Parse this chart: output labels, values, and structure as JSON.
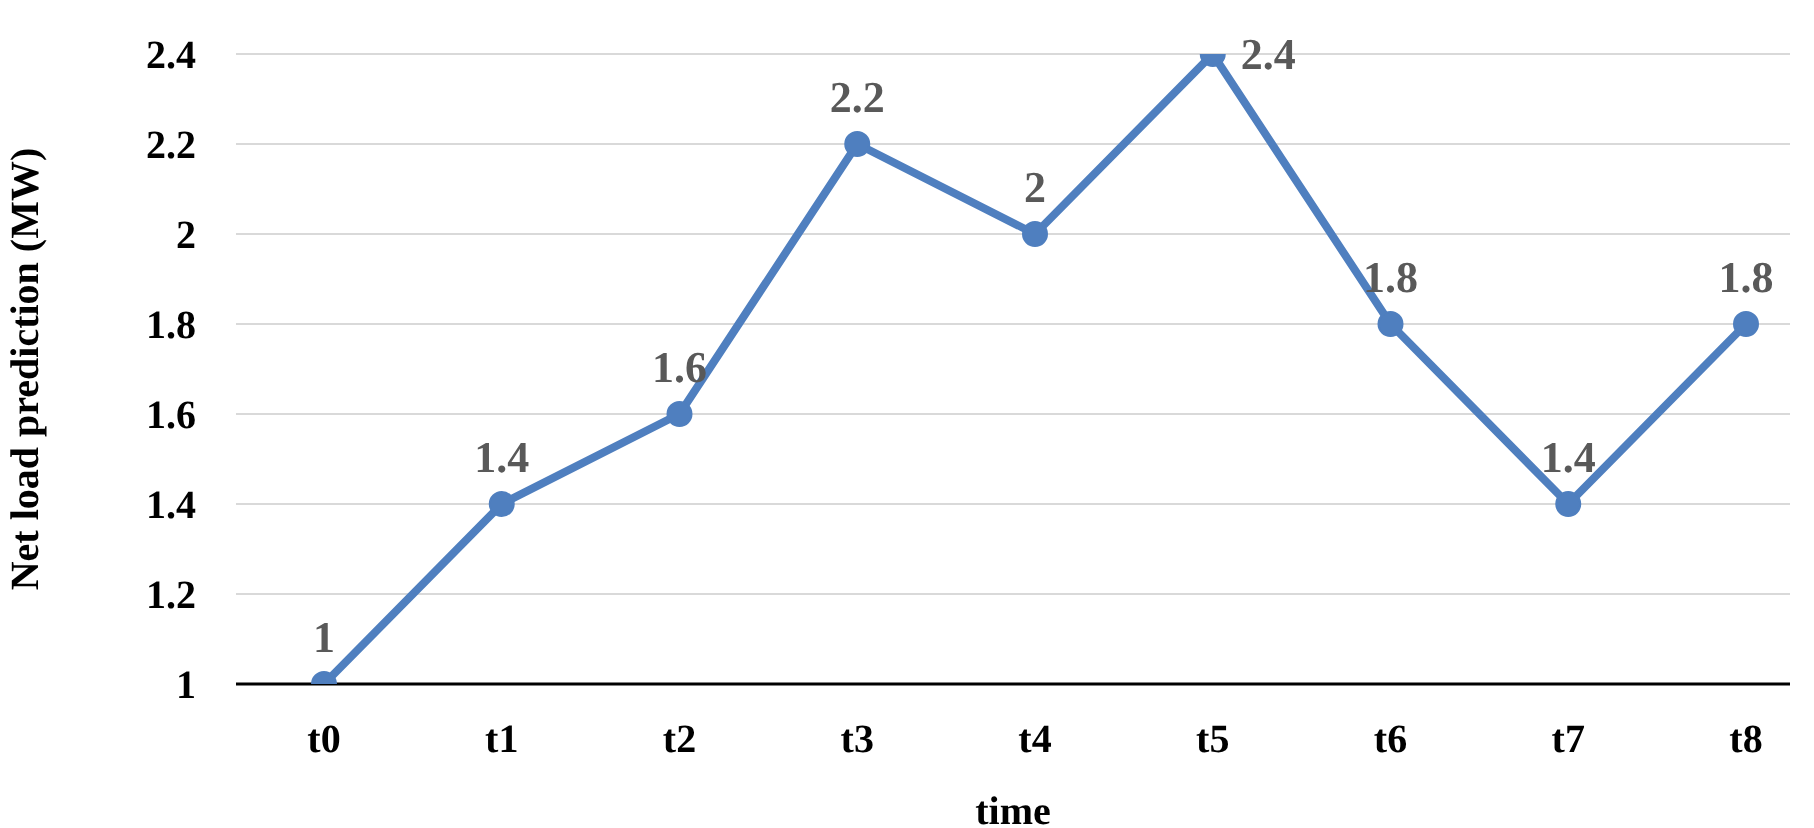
{
  "chart_data": {
    "type": "line",
    "xlabel": "time",
    "ylabel": "Net load prediction (MW)",
    "categories": [
      "t0",
      "t1",
      "t2",
      "t3",
      "t4",
      "t5",
      "t6",
      "t7",
      "t8"
    ],
    "series": [
      {
        "color": "#4f7fbf",
        "values": [
          1,
          1.4,
          1.6,
          2.2,
          2,
          2.4,
          1.8,
          1.4,
          1.8
        ]
      }
    ],
    "ylim": [
      1,
      2.4
    ],
    "yticks": [
      1,
      1.2,
      1.4,
      1.6,
      1.8,
      2,
      2.2,
      2.4
    ],
    "grid": "y",
    "marker": "circle",
    "line_style": "solid",
    "data_labels": true,
    "legend": false
  }
}
